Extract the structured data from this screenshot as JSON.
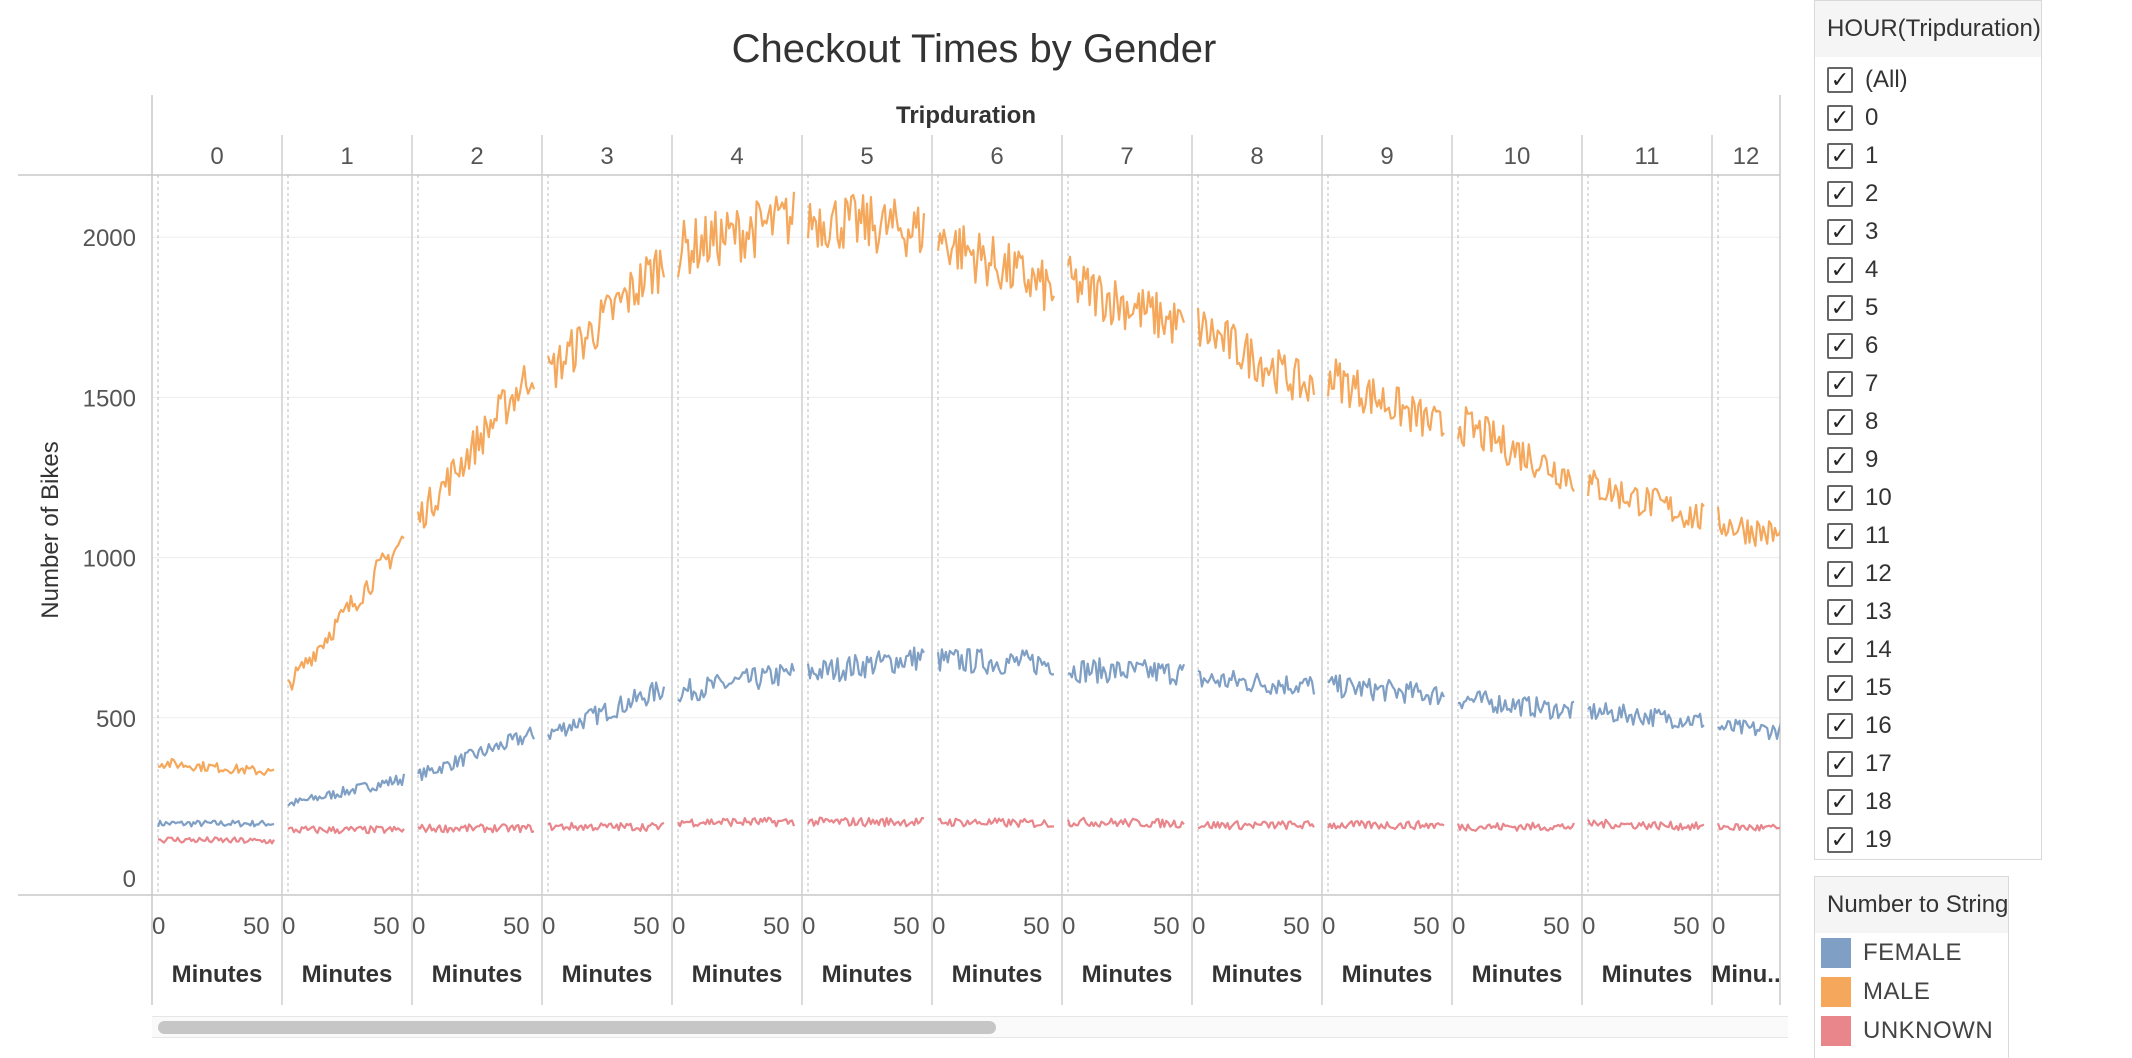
{
  "chart_data": {
    "type": "line",
    "title": "Checkout Times by Gender",
    "column_header": "Tripduration",
    "panels": [
      "0",
      "1",
      "2",
      "3",
      "4",
      "5",
      "6",
      "7",
      "8",
      "9",
      "10",
      "11",
      "12"
    ],
    "panel_axis_label": "Minutes",
    "last_panel_axis_label": "Minu..",
    "x_ticks": [
      "0",
      "50"
    ],
    "xlim": [
      0,
      59
    ],
    "ylabel": "Number of Bikes",
    "ylim": [
      0,
      2200
    ],
    "y_ticks": [
      0,
      500,
      1000,
      1500,
      2000
    ],
    "gridlines": true,
    "legend_position": "right",
    "series": [
      {
        "name": "FEMALE",
        "color": "#7F9FC4",
        "panel_start": [
          170,
          230,
          320,
          450,
          580,
          640,
          680,
          650,
          620,
          600,
          560,
          520,
          470
        ],
        "panel_end": [
          170,
          310,
          450,
          590,
          640,
          690,
          670,
          640,
          600,
          570,
          520,
          490,
          450
        ]
      },
      {
        "name": "MALE",
        "color": "#F5A85C",
        "panel_start": [
          360,
          600,
          1120,
          1570,
          1960,
          2060,
          2000,
          1860,
          1720,
          1570,
          1420,
          1230,
          1110
        ],
        "panel_end": [
          330,
          1060,
          1590,
          1930,
          2060,
          2020,
          1830,
          1720,
          1520,
          1400,
          1250,
          1120,
          1030
        ]
      },
      {
        "name": "UNKNOWN",
        "color": "#E8868B",
        "panel_start": [
          120,
          150,
          155,
          160,
          175,
          175,
          175,
          175,
          165,
          165,
          160,
          170,
          160
        ],
        "panel_end": [
          115,
          150,
          155,
          160,
          175,
          175,
          170,
          170,
          165,
          165,
          160,
          160,
          150
        ]
      }
    ]
  },
  "filter_panel": {
    "title": "HOUR(Tripduration)",
    "items": [
      "(All)",
      "0",
      "1",
      "2",
      "3",
      "4",
      "5",
      "6",
      "7",
      "8",
      "9",
      "10",
      "11",
      "12",
      "13",
      "14",
      "15",
      "16",
      "17",
      "18",
      "19"
    ],
    "check_glyph": "✓"
  },
  "legend_panel": {
    "title": "Number to String",
    "items": [
      {
        "label": "FEMALE",
        "color": "#7F9FC4"
      },
      {
        "label": "MALE",
        "color": "#F5A85C"
      },
      {
        "label": "UNKNOWN",
        "color": "#E8868B"
      }
    ]
  }
}
